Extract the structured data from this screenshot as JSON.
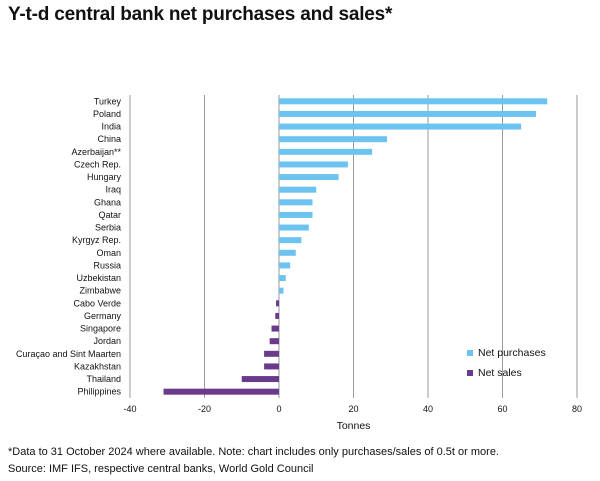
{
  "chart_data": {
    "type": "bar",
    "orientation": "horizontal",
    "title": "Y-t-d central bank net purchases and sales*",
    "xlabel": "Tonnes",
    "ylabel": "",
    "xlim": [
      -40,
      80
    ],
    "xticks": [
      -40,
      -20,
      0,
      20,
      40,
      60,
      80
    ],
    "grid": true,
    "legend_position": "bottom-right",
    "colors": {
      "purchases": "#6cc3f0",
      "sales": "#6a3a8c"
    },
    "legend": [
      "Net purchases",
      "Net sales"
    ],
    "categories": [
      "Turkey",
      "Poland",
      "India",
      "China",
      "Azerbaijan**",
      "Czech Rep.",
      "Hungary",
      "Iraq",
      "Ghana",
      "Qatar",
      "Serbia",
      "Kyrgyz Rep.",
      "Oman",
      "Russia",
      "Uzbekistan",
      "Zimbabwe",
      "Cabo Verde",
      "Germany",
      "Singapore",
      "Jordan",
      "Curaçao and Sint Maarten",
      "Kazakhstan",
      "Thailand",
      "Philippines"
    ],
    "values": [
      72,
      69,
      65,
      29,
      25,
      18.5,
      16,
      10,
      9,
      9,
      8,
      6,
      4.5,
      3,
      1.8,
      1.2,
      -0.8,
      -1,
      -2,
      -2.5,
      -4,
      -4,
      -10,
      -31
    ]
  },
  "notes": {
    "line1": "*Data to 31 October 2024 where available. Note: chart includes only purchases/sales of 0.5t or more.",
    "line2": "Source: IMF IFS, respective central banks, World Gold Council"
  }
}
